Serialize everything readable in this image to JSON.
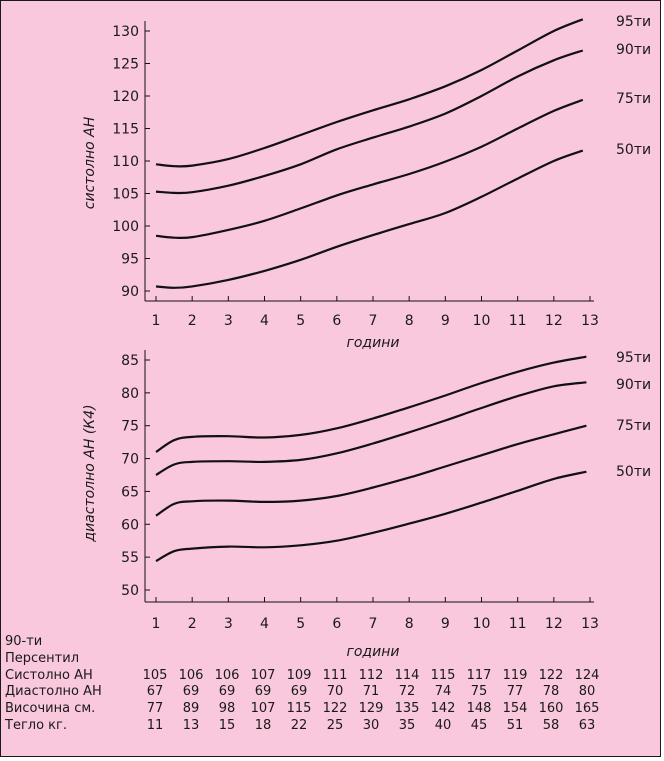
{
  "chart_data": [
    {
      "type": "line",
      "xlabel": "години",
      "ylabel": "систолно АН",
      "xlim": [
        1,
        13
      ],
      "ylim": [
        90,
        130
      ],
      "xticks": [
        1,
        2,
        3,
        4,
        5,
        6,
        7,
        8,
        9,
        10,
        11,
        12,
        13
      ],
      "yticks": [
        90,
        95,
        100,
        105,
        110,
        115,
        120,
        125,
        130
      ],
      "series": [
        {
          "name": "95ти",
          "x": [
            1,
            1.5,
            2,
            3,
            4,
            5,
            6,
            7,
            8,
            9,
            10,
            11,
            12,
            12.8
          ],
          "y": [
            109.5,
            109.2,
            109.3,
            110.3,
            112,
            114,
            116,
            117.8,
            119.5,
            121.5,
            124,
            127,
            130,
            131.8
          ]
        },
        {
          "name": "90ти",
          "x": [
            1,
            1.5,
            2,
            3,
            4,
            5,
            6,
            7,
            8,
            9,
            10,
            11,
            12,
            12.8
          ],
          "y": [
            105.3,
            105.1,
            105.2,
            106.2,
            107.7,
            109.5,
            111.8,
            113.6,
            115.3,
            117.3,
            120,
            123,
            125.5,
            127
          ]
        },
        {
          "name": "75ти",
          "x": [
            1,
            1.5,
            2,
            3,
            4,
            5,
            6,
            7,
            8,
            9,
            10,
            11,
            12,
            12.8
          ],
          "y": [
            98.5,
            98.2,
            98.3,
            99.4,
            100.8,
            102.7,
            104.7,
            106.4,
            108,
            109.9,
            112.2,
            115,
            117.7,
            119.4
          ]
        },
        {
          "name": "50ти",
          "x": [
            1,
            1.5,
            2,
            3,
            4,
            5,
            6,
            7,
            8,
            9,
            10,
            11,
            12,
            12.8
          ],
          "y": [
            90.7,
            90.5,
            90.7,
            91.7,
            93.1,
            94.8,
            96.8,
            98.6,
            100.3,
            102,
            104.5,
            107.3,
            110,
            111.6
          ]
        }
      ]
    },
    {
      "type": "line",
      "xlabel": "години",
      "ylabel": "диастолно АН (К4)",
      "xlim": [
        1,
        13
      ],
      "ylim": [
        50,
        85
      ],
      "xticks": [
        1,
        2,
        3,
        4,
        5,
        6,
        7,
        8,
        9,
        10,
        11,
        12,
        13
      ],
      "yticks": [
        50,
        55,
        60,
        65,
        70,
        75,
        80,
        85
      ],
      "series": [
        {
          "name": "95ти",
          "x": [
            1,
            1.5,
            2,
            3,
            4,
            5,
            6,
            7,
            8,
            9,
            10,
            11,
            12,
            12.9
          ],
          "y": [
            71,
            72.8,
            73.3,
            73.4,
            73.2,
            73.6,
            74.6,
            76.1,
            77.8,
            79.6,
            81.5,
            83.2,
            84.6,
            85.5
          ]
        },
        {
          "name": "90ти",
          "x": [
            1,
            1.5,
            2,
            3,
            4,
            5,
            6,
            7,
            8,
            9,
            10,
            11,
            12,
            12.9
          ],
          "y": [
            67.5,
            69.1,
            69.5,
            69.6,
            69.5,
            69.8,
            70.8,
            72.3,
            74,
            75.8,
            77.7,
            79.5,
            81,
            81.6
          ]
        },
        {
          "name": "75ти",
          "x": [
            1,
            1.5,
            2,
            3,
            4,
            5,
            6,
            7,
            8,
            9,
            10,
            11,
            12,
            12.9
          ],
          "y": [
            61.3,
            63.1,
            63.5,
            63.6,
            63.4,
            63.6,
            64.3,
            65.6,
            67.1,
            68.8,
            70.5,
            72.2,
            73.7,
            75
          ]
        },
        {
          "name": "50ти",
          "x": [
            1,
            1.5,
            2,
            3,
            4,
            5,
            6,
            7,
            8,
            9,
            10,
            11,
            12,
            12.9
          ],
          "y": [
            54.4,
            55.9,
            56.3,
            56.6,
            56.5,
            56.8,
            57.5,
            58.7,
            60.1,
            61.6,
            63.3,
            65.1,
            66.9,
            68
          ]
        }
      ]
    }
  ],
  "table": {
    "title_line1": "90-ти",
    "title_line2": "Персентил",
    "rows": [
      {
        "label": "Систолно АН",
        "values": [
          "105",
          "106",
          "106",
          "107",
          "109",
          "111",
          "112",
          "114",
          "115",
          "117",
          "119",
          "122",
          "124"
        ]
      },
      {
        "label": "Диастолно АН",
        "values": [
          "67",
          "69",
          "69",
          "69",
          "69",
          "70",
          "71",
          "72",
          "74",
          "75",
          "77",
          "78",
          "80"
        ]
      },
      {
        "label": "Височина см.",
        "values": [
          "77",
          "89",
          "98",
          "107",
          "115",
          "122",
          "129",
          "135",
          "142",
          "148",
          "154",
          "160",
          "165"
        ]
      },
      {
        "label": "Тегло кг.",
        "values": [
          "11",
          "13",
          "15",
          "18",
          "22",
          "25",
          "30",
          "35",
          "40",
          "45",
          "51",
          "58",
          "63"
        ]
      }
    ]
  },
  "colors": {
    "background": "#f9c8dd",
    "line": "#111111"
  }
}
